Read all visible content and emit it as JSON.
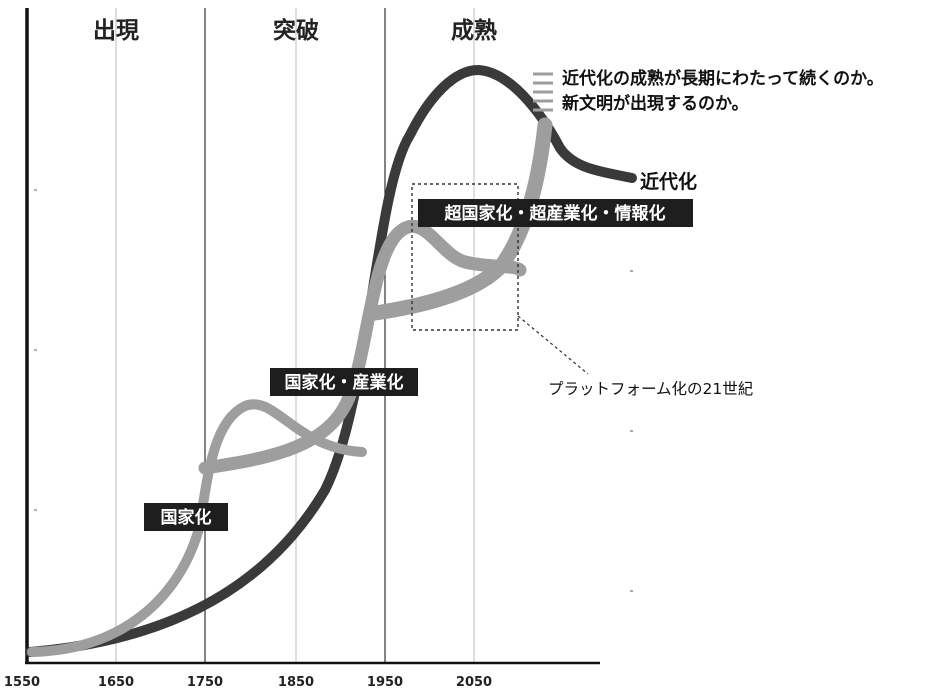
{
  "eras": [
    "出現",
    "突破",
    "成熟"
  ],
  "x_ticks": [
    "1550",
    "1650",
    "1750",
    "1850",
    "1950",
    "2050"
  ],
  "labels": {
    "nation_building": "国家化",
    "nation_industrial": "国家化・産業化",
    "super": "超国家化・超産業化・情報化",
    "modernization": "近代化",
    "platform": "プラットフォーム化の21世紀"
  },
  "notes": [
    "近代化の成熟が長期にわたって続くのか。",
    "新文明が出現するのか。"
  ],
  "colors": {
    "modernization_curve": "#3a3a3a",
    "wave_curves": "#9e9e9e",
    "label_bg": "#1e1e1e"
  }
}
